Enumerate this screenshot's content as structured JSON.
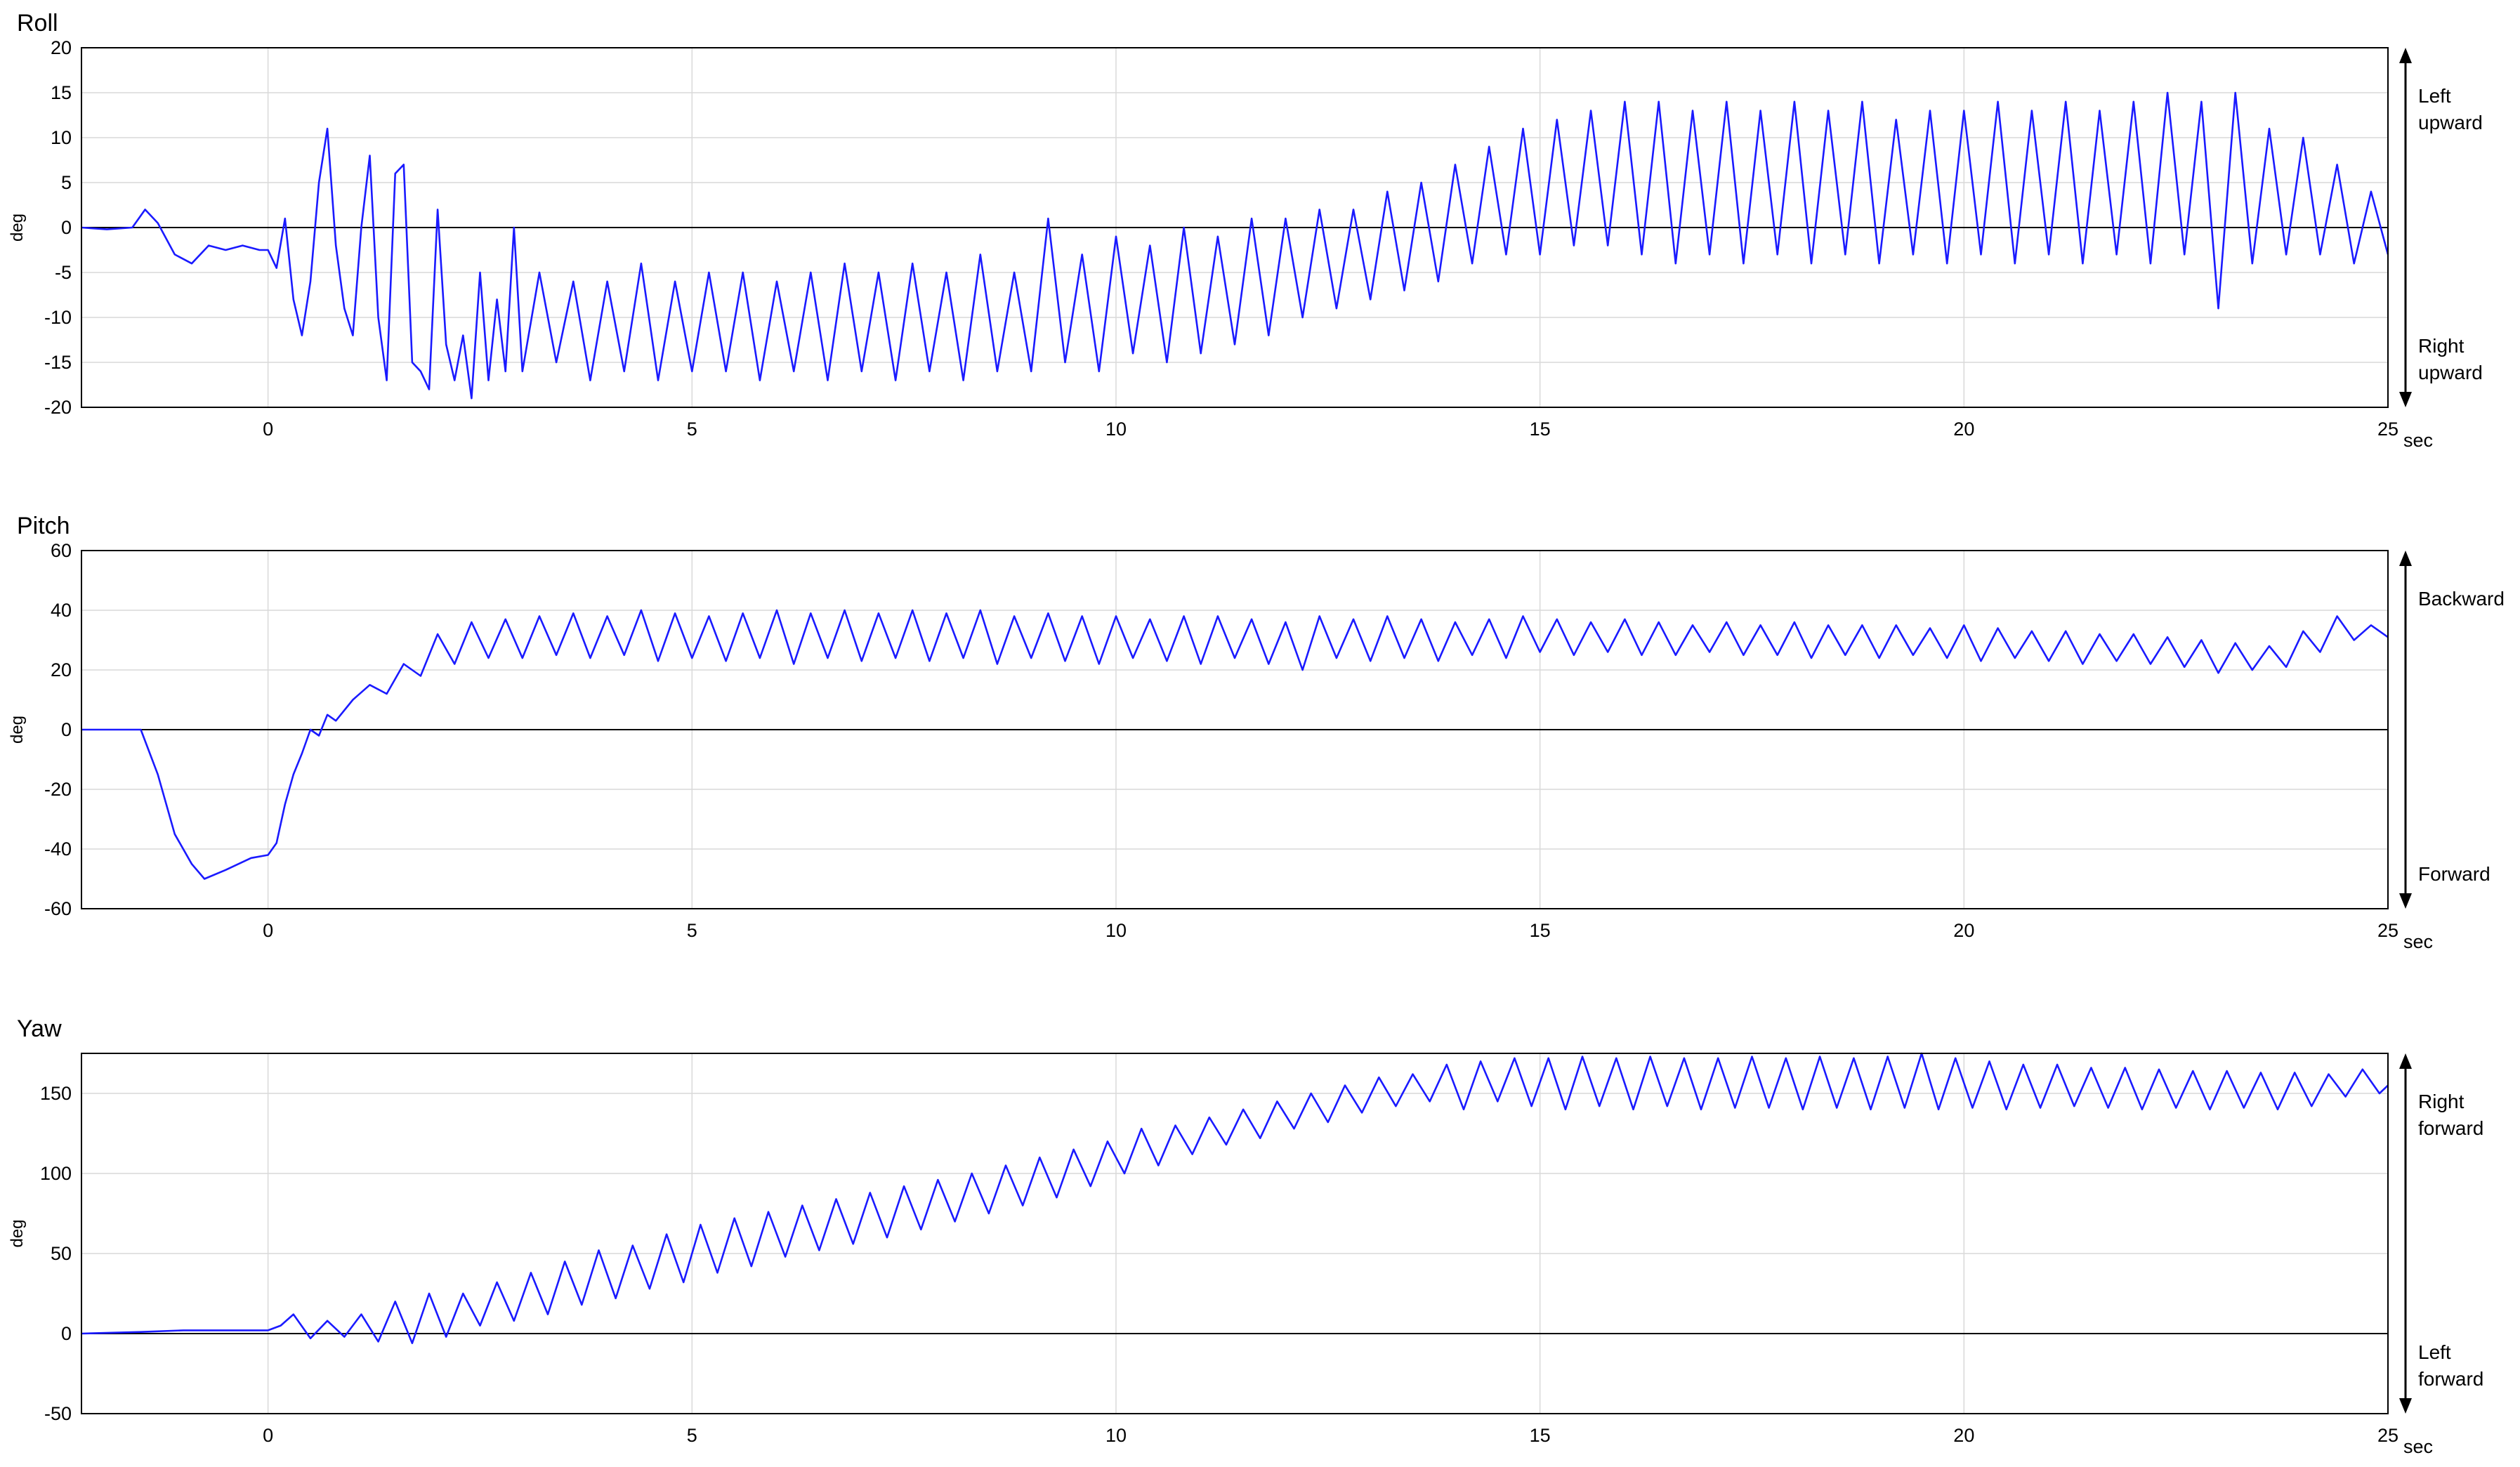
{
  "x_unit": "sec",
  "chart_data": [
    {
      "type": "line",
      "title": "Roll",
      "ylabel": "deg",
      "xlabel": "sec",
      "xlim": [
        -2.2,
        25
      ],
      "ylim": [
        -20,
        20
      ],
      "xticks": [
        0,
        5,
        10,
        15,
        20,
        25
      ],
      "yticks": [
        -20,
        -15,
        -10,
        -5,
        0,
        5,
        10,
        15,
        20
      ],
      "grid": true,
      "zero_line": true,
      "direction_top": [
        "Left",
        "upward"
      ],
      "direction_bottom": [
        "Right",
        "upward"
      ],
      "line_color": "#1a1aff",
      "series": [
        {
          "x": [
            -2.2,
            -1.9,
            -1.6,
            -1.45,
            -1.3,
            -1.1,
            -0.9,
            -0.7,
            -0.5,
            -0.3,
            -0.1,
            0.0,
            0.1,
            0.2,
            0.3,
            0.4,
            0.5,
            0.6,
            0.7,
            0.8,
            0.9,
            1.0,
            1.1,
            1.2,
            1.3,
            1.4,
            1.5,
            1.6,
            1.7,
            1.8,
            1.9,
            2.0,
            2.1,
            2.2,
            2.3,
            2.4,
            2.5,
            2.6,
            2.7,
            2.8,
            2.9,
            3.0,
            3.2,
            3.4,
            3.6,
            3.8,
            4.0,
            4.2,
            4.4,
            4.6,
            4.8,
            5.0,
            5.2,
            5.4,
            5.6,
            5.8,
            6.0,
            6.2,
            6.4,
            6.6,
            6.8,
            7.0,
            7.2,
            7.4,
            7.6,
            7.8,
            8.0,
            8.2,
            8.4,
            8.6,
            8.8,
            9.0,
            9.2,
            9.4,
            9.6,
            9.8,
            10.0,
            10.2,
            10.4,
            10.6,
            10.8,
            11.0,
            11.2,
            11.4,
            11.6,
            11.8,
            12.0,
            12.2,
            12.4,
            12.6,
            12.8,
            13.0,
            13.2,
            13.4,
            13.6,
            13.8,
            14.0,
            14.2,
            14.4,
            14.6,
            14.8,
            15.0,
            15.2,
            15.4,
            15.6,
            15.8,
            16.0,
            16.2,
            16.4,
            16.6,
            16.8,
            17.0,
            17.2,
            17.4,
            17.6,
            17.8,
            18.0,
            18.2,
            18.4,
            18.6,
            18.8,
            19.0,
            19.2,
            19.4,
            19.6,
            19.8,
            20.0,
            20.2,
            20.4,
            20.6,
            20.8,
            21.0,
            21.2,
            21.4,
            21.6,
            21.8,
            22.0,
            22.2,
            22.4,
            22.6,
            22.8,
            23.0,
            23.2,
            23.4,
            23.6,
            23.8,
            24.0,
            24.2,
            24.4,
            24.6,
            24.8,
            25.0
          ],
          "values": [
            0.0,
            -0.2,
            0.0,
            2.0,
            0.5,
            -3.0,
            -4.0,
            -2.0,
            -2.5,
            -2.0,
            -2.5,
            -2.5,
            -4.5,
            1.0,
            -8.0,
            -12.0,
            -6.0,
            5.0,
            11.0,
            -2.0,
            -9.0,
            -12.0,
            0.0,
            8.0,
            -10.0,
            -17.0,
            6.0,
            7.0,
            -15.0,
            -16.0,
            -18.0,
            2.0,
            -13.0,
            -17.0,
            -12.0,
            -19.0,
            -5.0,
            -17.0,
            -8.0,
            -16.0,
            0.0,
            -16.0,
            -5.0,
            -15.0,
            -6.0,
            -17.0,
            -6.0,
            -16.0,
            -4.0,
            -17.0,
            -6.0,
            -16.0,
            -5.0,
            -16.0,
            -5.0,
            -17.0,
            -6.0,
            -16.0,
            -5.0,
            -17.0,
            -4.0,
            -16.0,
            -5.0,
            -17.0,
            -4.0,
            -16.0,
            -5.0,
            -17.0,
            -3.0,
            -16.0,
            -5.0,
            -16.0,
            1.0,
            -15.0,
            -3.0,
            -16.0,
            -1.0,
            -14.0,
            -2.0,
            -15.0,
            0.0,
            -14.0,
            -1.0,
            -13.0,
            1.0,
            -12.0,
            1.0,
            -10.0,
            2.0,
            -9.0,
            2.0,
            -8.0,
            4.0,
            -7.0,
            5.0,
            -6.0,
            7.0,
            -4.0,
            9.0,
            -3.0,
            11.0,
            -3.0,
            12.0,
            -2.0,
            13.0,
            -2.0,
            14.0,
            -3.0,
            14.0,
            -4.0,
            13.0,
            -3.0,
            14.0,
            -4.0,
            13.0,
            -3.0,
            14.0,
            -4.0,
            13.0,
            -3.0,
            14.0,
            -4.0,
            12.0,
            -3.0,
            13.0,
            -4.0,
            13.0,
            -3.0,
            14.0,
            -4.0,
            13.0,
            -3.0,
            14.0,
            -4.0,
            13.0,
            -3.0,
            14.0,
            -4.0,
            15.0,
            -3.0,
            14.0,
            -9.0,
            15.0,
            -4.0,
            11.0,
            -3.0,
            10.0,
            -3.0,
            7.0,
            -4.0,
            4.0,
            -3.0
          ]
        }
      ]
    },
    {
      "type": "line",
      "title": "Pitch",
      "ylabel": "deg",
      "xlabel": "sec",
      "xlim": [
        -2.2,
        25
      ],
      "ylim": [
        -60,
        60
      ],
      "xticks": [
        0,
        5,
        10,
        15,
        20,
        25
      ],
      "yticks": [
        -60,
        -40,
        -20,
        0,
        20,
        40,
        60
      ],
      "grid": true,
      "zero_line": true,
      "direction_top": [
        "Backward"
      ],
      "direction_bottom": [
        "Forward"
      ],
      "line_color": "#1a1aff",
      "series": [
        {
          "x": [
            -2.2,
            -1.8,
            -1.5,
            -1.3,
            -1.1,
            -0.9,
            -0.75,
            -0.5,
            -0.2,
            0.0,
            0.1,
            0.2,
            0.3,
            0.4,
            0.5,
            0.6,
            0.7,
            0.8,
            1.0,
            1.2,
            1.4,
            1.6,
            1.8,
            2.0,
            2.2,
            2.4,
            2.6,
            2.8,
            3.0,
            3.2,
            3.4,
            3.6,
            3.8,
            4.0,
            4.2,
            4.4,
            4.6,
            4.8,
            5.0,
            5.2,
            5.4,
            5.6,
            5.8,
            6.0,
            6.2,
            6.4,
            6.6,
            6.8,
            7.0,
            7.2,
            7.4,
            7.6,
            7.8,
            8.0,
            8.2,
            8.4,
            8.6,
            8.8,
            9.0,
            9.2,
            9.4,
            9.6,
            9.8,
            10.0,
            10.2,
            10.4,
            10.6,
            10.8,
            11.0,
            11.2,
            11.4,
            11.6,
            11.8,
            12.0,
            12.2,
            12.4,
            12.6,
            12.8,
            13.0,
            13.2,
            13.4,
            13.6,
            13.8,
            14.0,
            14.2,
            14.4,
            14.6,
            14.8,
            15.0,
            15.2,
            15.4,
            15.6,
            15.8,
            16.0,
            16.2,
            16.4,
            16.6,
            16.8,
            17.0,
            17.2,
            17.4,
            17.6,
            17.8,
            18.0,
            18.2,
            18.4,
            18.6,
            18.8,
            19.0,
            19.2,
            19.4,
            19.6,
            19.8,
            20.0,
            20.2,
            20.4,
            20.6,
            20.8,
            21.0,
            21.2,
            21.4,
            21.6,
            21.8,
            22.0,
            22.2,
            22.4,
            22.6,
            22.8,
            23.0,
            23.2,
            23.4,
            23.6,
            23.8,
            24.0,
            24.2,
            24.4,
            24.6,
            24.8,
            25.0
          ],
          "values": [
            0.0,
            0.0,
            0.0,
            -15.0,
            -35.0,
            -45.0,
            -50.0,
            -47.0,
            -43.0,
            -42.0,
            -38.0,
            -25.0,
            -15.0,
            -8.0,
            0.0,
            -2.0,
            5.0,
            3.0,
            10.0,
            15.0,
            12.0,
            22.0,
            18.0,
            32.0,
            22.0,
            36.0,
            24.0,
            37.0,
            24.0,
            38.0,
            25.0,
            39.0,
            24.0,
            38.0,
            25.0,
            40.0,
            23.0,
            39.0,
            24.0,
            38.0,
            23.0,
            39.0,
            24.0,
            40.0,
            22.0,
            39.0,
            24.0,
            40.0,
            23.0,
            39.0,
            24.0,
            40.0,
            23.0,
            39.0,
            24.0,
            40.0,
            22.0,
            38.0,
            24.0,
            39.0,
            23.0,
            38.0,
            22.0,
            38.0,
            24.0,
            37.0,
            23.0,
            38.0,
            22.0,
            38.0,
            24.0,
            37.0,
            22.0,
            36.0,
            20.0,
            38.0,
            24.0,
            37.0,
            23.0,
            38.0,
            24.0,
            37.0,
            23.0,
            36.0,
            25.0,
            37.0,
            24.0,
            38.0,
            26.0,
            37.0,
            25.0,
            36.0,
            26.0,
            37.0,
            25.0,
            36.0,
            25.0,
            35.0,
            26.0,
            36.0,
            25.0,
            35.0,
            25.0,
            36.0,
            24.0,
            35.0,
            25.0,
            35.0,
            24.0,
            35.0,
            25.0,
            34.0,
            24.0,
            35.0,
            23.0,
            34.0,
            24.0,
            33.0,
            23.0,
            33.0,
            22.0,
            32.0,
            23.0,
            32.0,
            22.0,
            31.0,
            21.0,
            30.0,
            19.0,
            29.0,
            20.0,
            28.0,
            21.0,
            33.0,
            26.0,
            38.0,
            30.0,
            35.0,
            31.0
          ]
        }
      ]
    },
    {
      "type": "line",
      "title": "Yaw",
      "ylabel": "deg",
      "xlabel": "sec",
      "xlim": [
        -2.2,
        25
      ],
      "ylim": [
        -50,
        175
      ],
      "xticks": [
        0,
        5,
        10,
        15,
        20,
        25
      ],
      "yticks": [
        -50,
        0,
        50,
        100,
        150
      ],
      "grid": true,
      "zero_line": true,
      "direction_top": [
        "Right",
        "forward"
      ],
      "direction_bottom": [
        "Left",
        "forward"
      ],
      "line_color": "#1a1aff",
      "series": [
        {
          "x": [
            -2.2,
            -1.5,
            -1.0,
            -0.5,
            0.0,
            0.15,
            0.3,
            0.5,
            0.7,
            0.9,
            1.1,
            1.3,
            1.5,
            1.7,
            1.9,
            2.1,
            2.3,
            2.5,
            2.7,
            2.9,
            3.1,
            3.3,
            3.5,
            3.7,
            3.9,
            4.1,
            4.3,
            4.5,
            4.7,
            4.9,
            5.1,
            5.3,
            5.5,
            5.7,
            5.9,
            6.1,
            6.3,
            6.5,
            6.7,
            6.9,
            7.1,
            7.3,
            7.5,
            7.7,
            7.9,
            8.1,
            8.3,
            8.5,
            8.7,
            8.9,
            9.1,
            9.3,
            9.5,
            9.7,
            9.9,
            10.1,
            10.3,
            10.5,
            10.7,
            10.9,
            11.1,
            11.3,
            11.5,
            11.7,
            11.9,
            12.1,
            12.3,
            12.5,
            12.7,
            12.9,
            13.1,
            13.3,
            13.5,
            13.7,
            13.9,
            14.1,
            14.3,
            14.5,
            14.7,
            14.9,
            15.1,
            15.3,
            15.5,
            15.7,
            15.9,
            16.1,
            16.3,
            16.5,
            16.7,
            16.9,
            17.1,
            17.3,
            17.5,
            17.7,
            17.9,
            18.1,
            18.3,
            18.5,
            18.7,
            18.9,
            19.1,
            19.3,
            19.5,
            19.7,
            19.9,
            20.1,
            20.3,
            20.5,
            20.7,
            20.9,
            21.1,
            21.3,
            21.5,
            21.7,
            21.9,
            22.1,
            22.3,
            22.5,
            22.7,
            22.9,
            23.1,
            23.3,
            23.5,
            23.7,
            23.9,
            24.1,
            24.3,
            24.5,
            24.7,
            24.9,
            25.0
          ],
          "values": [
            0.0,
            1.0,
            2.0,
            2.0,
            2.0,
            5.0,
            12.0,
            -3.0,
            8.0,
            -2.0,
            12.0,
            -5.0,
            20.0,
            -6.0,
            25.0,
            -2.0,
            25.0,
            5.0,
            32.0,
            8.0,
            38.0,
            12.0,
            45.0,
            18.0,
            52.0,
            22.0,
            55.0,
            28.0,
            62.0,
            32.0,
            68.0,
            38.0,
            72.0,
            42.0,
            76.0,
            48.0,
            80.0,
            52.0,
            84.0,
            56.0,
            88.0,
            60.0,
            92.0,
            65.0,
            96.0,
            70.0,
            100.0,
            75.0,
            105.0,
            80.0,
            110.0,
            85.0,
            115.0,
            92.0,
            120.0,
            100.0,
            128.0,
            105.0,
            130.0,
            112.0,
            135.0,
            118.0,
            140.0,
            122.0,
            145.0,
            128.0,
            150.0,
            132.0,
            155.0,
            138.0,
            160.0,
            142.0,
            162.0,
            145.0,
            168.0,
            140.0,
            170.0,
            145.0,
            172.0,
            142.0,
            172.0,
            140.0,
            173.0,
            142.0,
            172.0,
            140.0,
            173.0,
            142.0,
            172.0,
            140.0,
            172.0,
            141.0,
            173.0,
            141.0,
            172.0,
            140.0,
            173.0,
            141.0,
            172.0,
            140.0,
            173.0,
            141.0,
            175.0,
            140.0,
            172.0,
            141.0,
            170.0,
            140.0,
            168.0,
            141.0,
            168.0,
            142.0,
            166.0,
            141.0,
            166.0,
            140.0,
            165.0,
            141.0,
            164.0,
            140.0,
            164.0,
            141.0,
            163.0,
            140.0,
            163.0,
            142.0,
            162.0,
            148.0,
            165.0,
            150.0,
            155.0
          ]
        }
      ]
    }
  ]
}
